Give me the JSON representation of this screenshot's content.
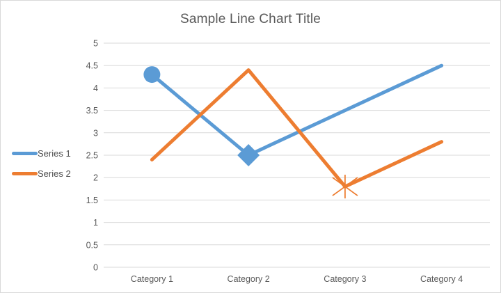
{
  "chart_data": {
    "type": "line",
    "title": "Sample Line Chart Title",
    "categories": [
      "Category 1",
      "Category 2",
      "Category 3",
      "Category 4"
    ],
    "series": [
      {
        "name": "Series 1",
        "color": "#5B9BD5",
        "values": [
          4.3,
          2.5,
          3.5,
          4.5
        ],
        "markers": [
          "circle",
          "diamond",
          null,
          null
        ]
      },
      {
        "name": "Series 2",
        "color": "#ED7D31",
        "values": [
          2.4,
          4.4,
          1.8,
          2.8
        ],
        "markers": [
          null,
          null,
          "asterisk",
          null
        ]
      }
    ],
    "y_tick_labels": [
      "0",
      "0.5",
      "1",
      "1.5",
      "2",
      "2.5",
      "3",
      "3.5",
      "4",
      "4.5",
      "5"
    ],
    "ylim": [
      0,
      5
    ],
    "xlabel": "",
    "ylabel": "",
    "grid": "horizontal",
    "legend_position": "left",
    "colors": {
      "gridline": "#D9D9D9",
      "axis_text": "#595959",
      "title_text": "#595959",
      "frame_border": "#D9D9D9",
      "background": "#FFFFFF"
    }
  }
}
